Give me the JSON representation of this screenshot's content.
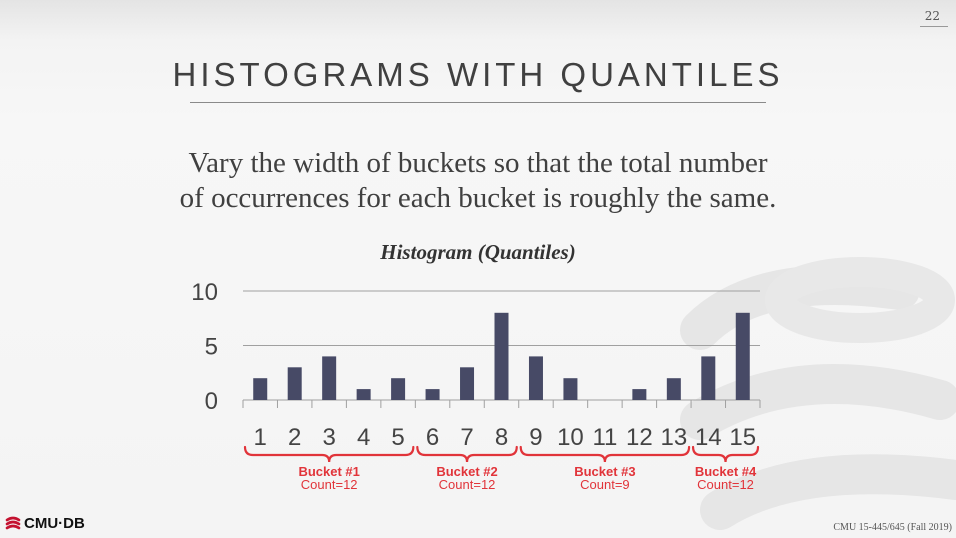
{
  "slide": {
    "number": "22",
    "title": "HISTOGRAMS WITH QUANTILES",
    "subtitle_line1": "Vary the width of buckets so that the total number",
    "subtitle_line2": "of occurrences for each bucket is roughly the same.",
    "logo_text": "CMU·DB",
    "footer": "CMU 15-445/645 (Fall 2019)"
  },
  "colors": {
    "bar": "#474a66",
    "bucket": "#e1343a",
    "grid": "#a0a0a0",
    "text": "#404040"
  },
  "chart_data": {
    "type": "bar",
    "title": "Histogram (Quantiles)",
    "categories": [
      "1",
      "2",
      "3",
      "4",
      "5",
      "6",
      "7",
      "8",
      "9",
      "10",
      "11",
      "12",
      "13",
      "14",
      "15"
    ],
    "values": [
      2,
      3,
      4,
      1,
      2,
      1,
      3,
      8,
      4,
      2,
      0,
      1,
      2,
      4,
      8
    ],
    "ylim": [
      0,
      10
    ],
    "yticks": [
      "0",
      "5",
      "10"
    ],
    "grid": true,
    "buckets": [
      {
        "label": "Bucket #1",
        "count": "Count=12",
        "from": 1,
        "to": 5
      },
      {
        "label": "Bucket #2",
        "count": "Count=12",
        "from": 6,
        "to": 8
      },
      {
        "label": "Bucket #3",
        "count": "Count=9",
        "from": 9,
        "to": 13
      },
      {
        "label": "Bucket #4",
        "count": "Count=12",
        "from": 14,
        "to": 15
      }
    ]
  }
}
